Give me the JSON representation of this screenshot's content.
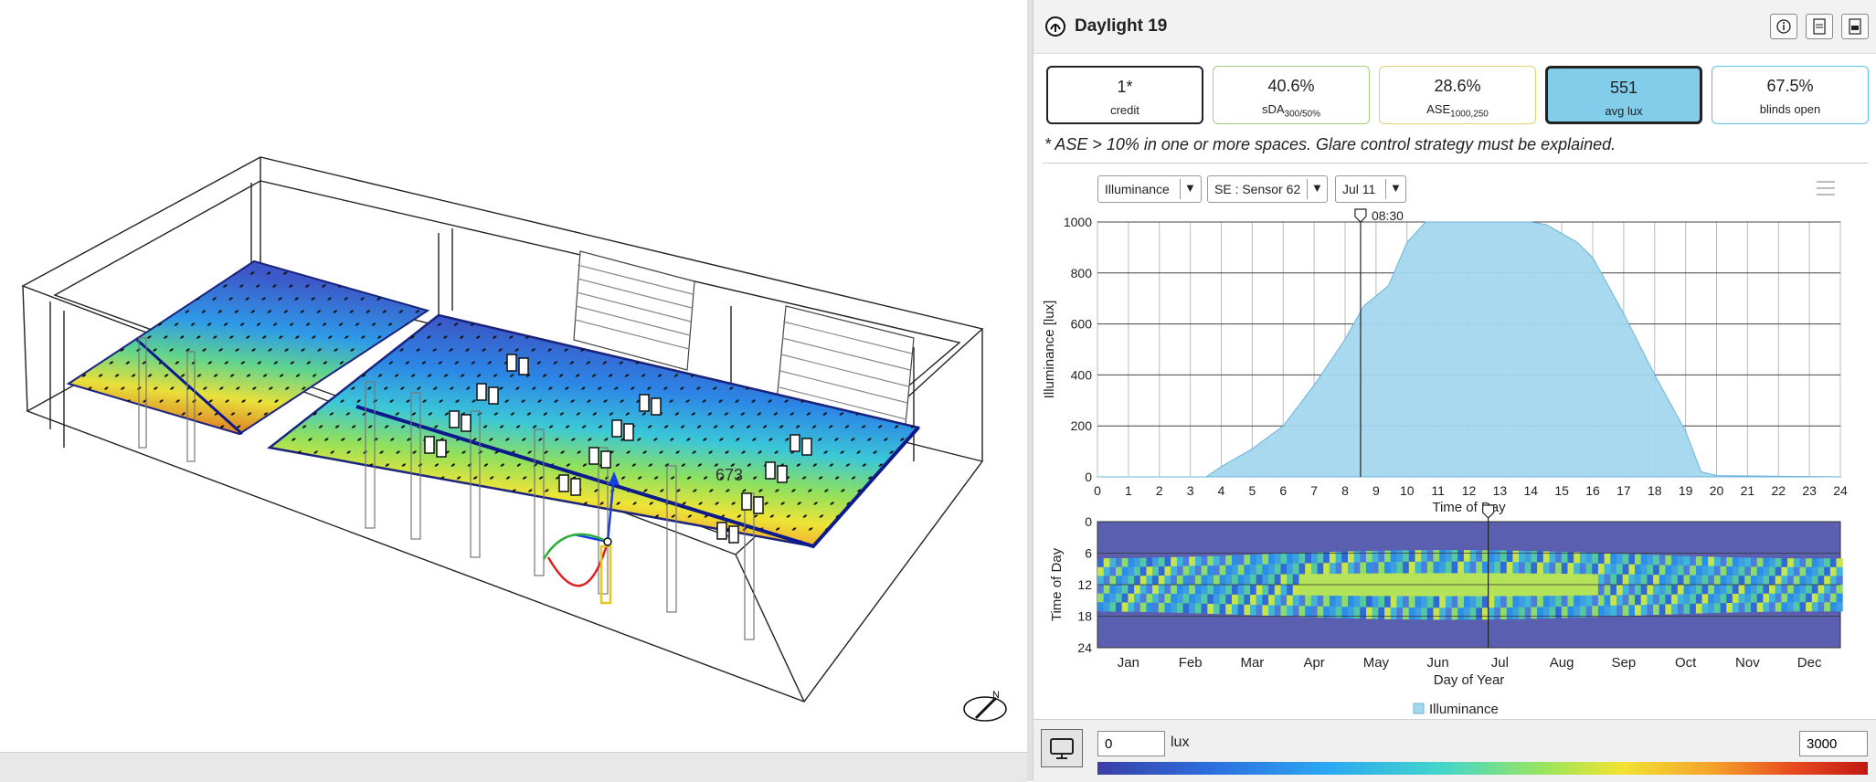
{
  "viewport": {
    "value_label": "673"
  },
  "panel": {
    "title": "Daylight 19",
    "header_buttons": [
      {
        "name": "info-button",
        "icon": "info-icon"
      },
      {
        "name": "csv-export-button",
        "icon": "csv-icon"
      },
      {
        "name": "pdf-export-button",
        "icon": "pdf-icon"
      }
    ]
  },
  "kpis": [
    {
      "value": "1*",
      "label": "credit",
      "sub": "",
      "border": "#222"
    },
    {
      "value": "40.6%",
      "label": "sDA",
      "sub": "300/50%",
      "border": "#9ed27a"
    },
    {
      "value": "28.6%",
      "label": "ASE",
      "sub": "1000,250",
      "border": "#e8cd72"
    },
    {
      "value": "551",
      "label": "avg lux",
      "sub": "",
      "border": "#222",
      "fill": "#82cdea"
    },
    {
      "value": "67.5%",
      "label": "blinds open",
      "sub": "",
      "border": "#57c1e8"
    }
  ],
  "note": "* ASE > 10% in one or more spaces. Glare control strategy must be explained.",
  "controls": {
    "metric": "Illuminance",
    "sensor": "SE : Sensor 62",
    "date": "Jul 11"
  },
  "chart_data": [
    {
      "type": "area",
      "series": [
        {
          "name": "Illuminance",
          "color": "#a3d7ee"
        }
      ],
      "x": [
        0,
        3.5,
        4,
        5,
        6,
        7,
        8,
        8.6,
        9.4,
        10,
        10.6,
        11,
        12,
        13,
        14,
        14.5,
        15.5,
        16,
        17,
        18,
        19,
        19.5,
        20,
        24
      ],
      "values": [
        0,
        0,
        40,
        110,
        200,
        360,
        540,
        670,
        750,
        920,
        1000,
        1000,
        1000,
        1000,
        1000,
        990,
        920,
        860,
        640,
        400,
        180,
        20,
        5,
        0
      ],
      "xlabel": "Time of Day",
      "ylabel": "Illuminance [lux]",
      "xlim": [
        0,
        24
      ],
      "ylim": [
        0,
        1000
      ],
      "xticks": [
        "0",
        "1",
        "2",
        "3",
        "4",
        "5",
        "6",
        "7",
        "8",
        "9",
        "10",
        "11",
        "12",
        "13",
        "14",
        "15",
        "16",
        "17",
        "18",
        "19",
        "20",
        "21",
        "22",
        "23",
        "24"
      ],
      "yticks": [
        "0",
        "200",
        "400",
        "600",
        "800",
        "1000"
      ],
      "cursor": {
        "x": 8.5,
        "label": "08:30"
      },
      "grid": true,
      "legend": "bottom-center",
      "legend_label": "Illuminance"
    },
    {
      "type": "heatmap",
      "xlabel": "Day of Year",
      "ylabel": "Time of Day",
      "months": [
        "Jan",
        "Feb",
        "Mar",
        "Apr",
        "May",
        "Jun",
        "Jul",
        "Aug",
        "Sep",
        "Oct",
        "Nov",
        "Dec"
      ],
      "yticks": [
        "0",
        "6",
        "12",
        "18",
        "24"
      ],
      "cursor_day": 192,
      "daylight_hours": [
        5,
        19
      ]
    }
  ],
  "color_scale": {
    "min": "0",
    "max": "3000",
    "unit": "lux"
  }
}
